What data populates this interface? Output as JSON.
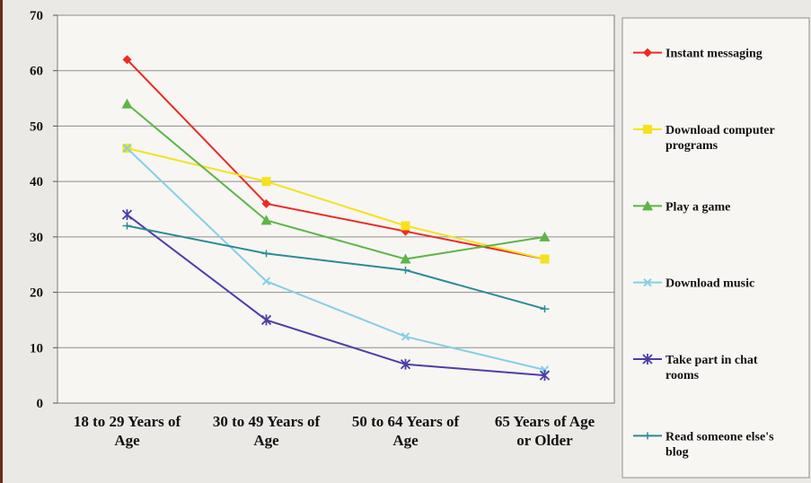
{
  "chart_data": {
    "type": "line",
    "categories": [
      [
        "18 to 29 Years of",
        "Age"
      ],
      [
        "30 to 49 Years of",
        "Age"
      ],
      [
        "50 to 64 Years of",
        "Age"
      ],
      [
        "65 Years of Age",
        "or Older"
      ]
    ],
    "ylim": [
      0,
      70
    ],
    "yticks": [
      0,
      10,
      20,
      30,
      40,
      50,
      60,
      70
    ],
    "grid": true,
    "legend_position": "right",
    "series": [
      {
        "name": "Instant messaging",
        "values": [
          62,
          36,
          31,
          26
        ],
        "color": "#ec2b23",
        "marker": "diamond"
      },
      {
        "name": "Download computer programs",
        "values": [
          46,
          40,
          32,
          26
        ],
        "color": "#f5e21d",
        "marker": "square"
      },
      {
        "name": "Play a game",
        "values": [
          54,
          33,
          26,
          30
        ],
        "color": "#5db547",
        "marker": "triangle"
      },
      {
        "name": "Download music",
        "values": [
          46,
          22,
          12,
          6
        ],
        "color": "#86cfe6",
        "marker": "x"
      },
      {
        "name": "Take part in chat rooms",
        "values": [
          34,
          15,
          7,
          5
        ],
        "color": "#4b3ea6",
        "marker": "star"
      },
      {
        "name": "Read someone else's blog",
        "values": [
          32,
          27,
          24,
          17
        ],
        "color": "#2b8b97",
        "marker": "plus"
      }
    ]
  }
}
